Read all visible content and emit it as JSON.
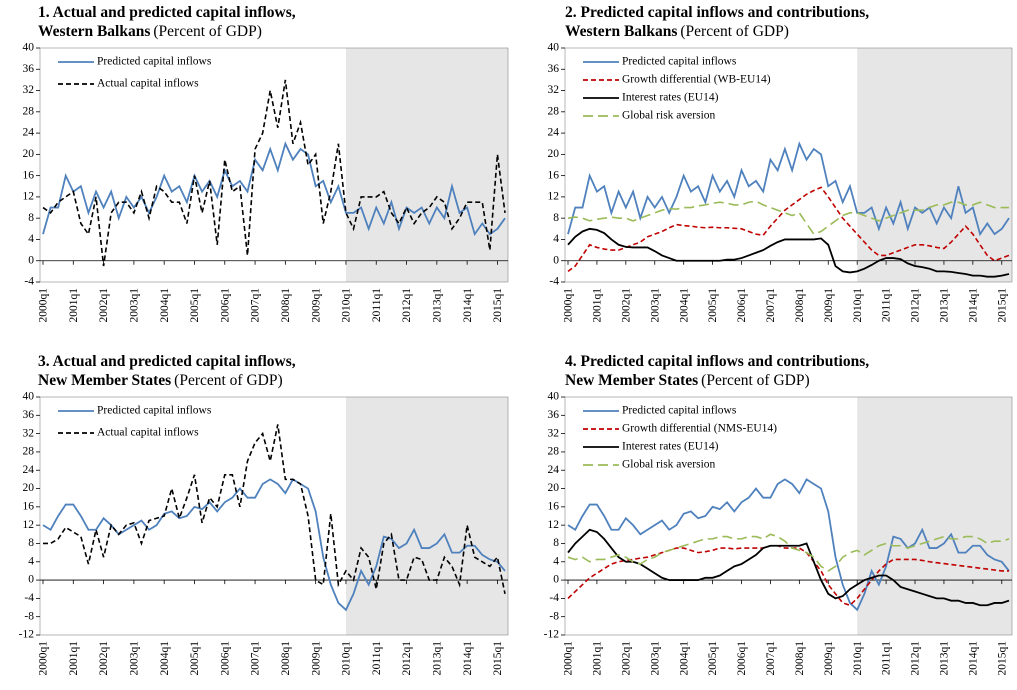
{
  "chart_data": [
    {
      "type": "line",
      "title": "1. Actual and predicted capital inflows,",
      "subtitle": "Western Balkans",
      "unit": "(Percent of GDP)",
      "categories": [
        "2000q1",
        null,
        null,
        null,
        "2001q1",
        null,
        null,
        null,
        "2002q1",
        null,
        null,
        null,
        "2003q1",
        null,
        null,
        null,
        "2004q1",
        null,
        null,
        null,
        "2005q1",
        null,
        null,
        null,
        "2006q1",
        null,
        null,
        null,
        "2007q1",
        null,
        null,
        null,
        "2008q1",
        null,
        null,
        null,
        "2009q1",
        null,
        null,
        null,
        "2010q1",
        null,
        null,
        null,
        "2011q1",
        null,
        null,
        null,
        "2012q1",
        null,
        null,
        null,
        "2013q1",
        null,
        null,
        null,
        "2014q1",
        null,
        null,
        null,
        "2015q1",
        null
      ],
      "shade_from": "2010q1",
      "legend": "upper left",
      "grid": false,
      "ylim": [
        -4,
        40
      ],
      "yticks": [
        -4,
        0,
        4,
        8,
        12,
        16,
        20,
        24,
        28,
        32,
        36,
        40
      ],
      "series": [
        {
          "name": "Predicted capital inflows",
          "color": "#4f81bd",
          "dash": "solid",
          "values": [
            5,
            10,
            10,
            16,
            13,
            14,
            9,
            13,
            10,
            13,
            8,
            12,
            10,
            12,
            9,
            12,
            16,
            13,
            14,
            11,
            16,
            13,
            15,
            12,
            17,
            14,
            15,
            13,
            19,
            17,
            21,
            17,
            22,
            19,
            21,
            20,
            14,
            15,
            11,
            14,
            9,
            9,
            10,
            6,
            10,
            7,
            11,
            6,
            10,
            9,
            10,
            7,
            10,
            8,
            14,
            9,
            10,
            5,
            7,
            5,
            6,
            8
          ]
        },
        {
          "name": "Actual capital inflows",
          "color": "#000000",
          "dash": "dashed",
          "values": [
            10,
            9,
            11,
            12,
            13,
            7,
            5,
            12,
            -1,
            9,
            11,
            11,
            9,
            13,
            8,
            14,
            13,
            11,
            11,
            7,
            16,
            9,
            15,
            3,
            19,
            13,
            14,
            1,
            21,
            24,
            32,
            25,
            34,
            22,
            26,
            18,
            20,
            7,
            13,
            22,
            9,
            6,
            12,
            12,
            12,
            13,
            9,
            7,
            10,
            7,
            9,
            10,
            12,
            11,
            6,
            8,
            11,
            11,
            11,
            2,
            20,
            9
          ]
        }
      ]
    },
    {
      "type": "line",
      "title": "2. Predicted capital inflows and contributions,",
      "subtitle": "Western Balkans",
      "unit": "(Percent of GDP)",
      "categories": [
        "2000q1",
        null,
        null,
        null,
        "2001q1",
        null,
        null,
        null,
        "2002q1",
        null,
        null,
        null,
        "2003q1",
        null,
        null,
        null,
        "2004q1",
        null,
        null,
        null,
        "2005q1",
        null,
        null,
        null,
        "2006q1",
        null,
        null,
        null,
        "2007q1",
        null,
        null,
        null,
        "2008q1",
        null,
        null,
        null,
        "2009q1",
        null,
        null,
        null,
        "2010q1",
        null,
        null,
        null,
        "2011q1",
        null,
        null,
        null,
        "2012q1",
        null,
        null,
        null,
        "2013q1",
        null,
        null,
        null,
        "2014q1",
        null,
        null,
        null,
        "2015q1",
        null
      ],
      "shade_from": "2010q1",
      "legend": "upper left",
      "grid": false,
      "ylim": [
        -4,
        40
      ],
      "yticks": [
        -4,
        0,
        4,
        8,
        12,
        16,
        20,
        24,
        28,
        32,
        36,
        40
      ],
      "series": [
        {
          "name": "Predicted capital inflows",
          "color": "#4f81bd",
          "dash": "solid",
          "values": [
            5,
            10,
            10,
            16,
            13,
            14,
            9,
            13,
            10,
            13,
            8,
            12,
            10,
            12,
            9,
            12,
            16,
            13,
            14,
            11,
            16,
            13,
            15,
            12,
            17,
            14,
            15,
            13,
            19,
            17,
            21,
            17,
            22,
            19,
            21,
            20,
            14,
            15,
            11,
            14,
            9,
            9,
            10,
            6,
            10,
            7,
            11,
            6,
            10,
            9,
            10,
            7,
            10,
            8,
            14,
            9,
            10,
            5,
            7,
            5,
            6,
            8
          ]
        },
        {
          "name": "Growth differential (WB-EU14)",
          "color": "#c00000",
          "dash": "dashed",
          "values": [
            -2,
            -1,
            1,
            3,
            2.5,
            2.2,
            2,
            2,
            2.5,
            3,
            3.5,
            4.5,
            5,
            5.5,
            6.2,
            6.8,
            6.6,
            6.5,
            6.3,
            6.2,
            6.3,
            6.2,
            6.2,
            6.1,
            6,
            5.5,
            5,
            4.8,
            6.5,
            8,
            9.5,
            10.5,
            11.5,
            12.5,
            13.2,
            13.8,
            12,
            10,
            8,
            6.5,
            5,
            3.5,
            2,
            1,
            1,
            1.5,
            2,
            2.5,
            3,
            3,
            2.8,
            2.5,
            2.3,
            3.5,
            5,
            6.5,
            5,
            3,
            1,
            0,
            0.5,
            1
          ]
        },
        {
          "name": "Interest rates (EU14)",
          "color": "#000000",
          "dash": "solid",
          "values": [
            3,
            4.5,
            5.5,
            6,
            5.8,
            5.2,
            4,
            3,
            2.6,
            2.5,
            2.5,
            2.5,
            1.8,
            1,
            0.5,
            0,
            0,
            0,
            0,
            0,
            0,
            0,
            0.2,
            0.2,
            0.5,
            1,
            1.5,
            2,
            2.8,
            3.5,
            4,
            4,
            4,
            4,
            4,
            4.2,
            3,
            -1,
            -2,
            -2.2,
            -2,
            -1.5,
            -0.8,
            0,
            0.5,
            0.5,
            0.3,
            -0.5,
            -1,
            -1.2,
            -1.5,
            -2,
            -2,
            -2.1,
            -2.3,
            -2.5,
            -2.8,
            -2.8,
            -3,
            -3,
            -2.8,
            -2.5
          ]
        },
        {
          "name": "Global risk aversion",
          "color": "#9bbb59",
          "dash": "longdash",
          "values": [
            8,
            8.2,
            8,
            7.5,
            7.8,
            8,
            8.2,
            8,
            8,
            7.5,
            8,
            8.5,
            9,
            9.5,
            9.8,
            9.7,
            10,
            10,
            10.3,
            10.5,
            10.8,
            11,
            10.8,
            10.5,
            10.5,
            11,
            11.2,
            10.5,
            10,
            9.5,
            9,
            8.5,
            9,
            7,
            5,
            5.5,
            6.5,
            7.5,
            8.5,
            9,
            9,
            8.5,
            8,
            7.5,
            8,
            8.5,
            9,
            9.5,
            9.5,
            9.5,
            10,
            10.5,
            10.5,
            11,
            11,
            10.5,
            10.5,
            11,
            10.5,
            10,
            10,
            10
          ]
        }
      ]
    },
    {
      "type": "line",
      "title": "3. Actual and predicted capital inflows,",
      "subtitle": "New Member States",
      "unit": "(Percent of GDP)",
      "categories": [
        "2000q1",
        null,
        null,
        null,
        "2001q1",
        null,
        null,
        null,
        "2002q1",
        null,
        null,
        null,
        "2003q1",
        null,
        null,
        null,
        "2004q1",
        null,
        null,
        null,
        "2005q1",
        null,
        null,
        null,
        "2006q1",
        null,
        null,
        null,
        "2007q1",
        null,
        null,
        null,
        "2008q1",
        null,
        null,
        null,
        "2009q1",
        null,
        null,
        null,
        "2010q1",
        null,
        null,
        null,
        "2011q1",
        null,
        null,
        null,
        "2012q1",
        null,
        null,
        null,
        "2013q1",
        null,
        null,
        null,
        "2014q1",
        null,
        null,
        null,
        "2015q1",
        null
      ],
      "shade_from": "2010q1",
      "legend": "upper left",
      "grid": false,
      "ylim": [
        -12,
        40
      ],
      "yticks": [
        -12,
        -8,
        -4,
        0,
        4,
        8,
        12,
        16,
        20,
        24,
        28,
        32,
        36,
        40
      ],
      "series": [
        {
          "name": "Predicted capital inflows",
          "color": "#4f81bd",
          "dash": "solid",
          "values": [
            12,
            11,
            14,
            16.5,
            16.5,
            14,
            11,
            11,
            13.5,
            12,
            10,
            11,
            12,
            13,
            11,
            12,
            14.5,
            15,
            13.5,
            14,
            16,
            15.5,
            17,
            15,
            17,
            18,
            20,
            18,
            18,
            21,
            22,
            21,
            19,
            22,
            21,
            20,
            15,
            5,
            -1,
            -5,
            -6.5,
            -3,
            2,
            -1,
            3,
            9.5,
            9,
            7,
            8,
            11,
            7,
            7,
            8,
            10,
            6,
            6,
            7.5,
            7.5,
            5.5,
            4.5,
            4,
            2
          ]
        },
        {
          "name": "Actual capital inflows",
          "color": "#000000",
          "dash": "dashed",
          "values": [
            8,
            8,
            9,
            11.5,
            10.5,
            9.5,
            3.5,
            11,
            5,
            12,
            10,
            12,
            12.5,
            8,
            13,
            13.5,
            14,
            20,
            13.5,
            18,
            23,
            12.5,
            18,
            16,
            23,
            23,
            16,
            26,
            30,
            32,
            26,
            34,
            22,
            22,
            21,
            14,
            0,
            -1,
            14.5,
            -1,
            2,
            0,
            7,
            5,
            -2,
            8,
            10,
            0,
            0,
            5,
            4.5,
            0,
            0,
            5,
            3,
            -1,
            12,
            5,
            4,
            3,
            5,
            -3
          ]
        }
      ]
    },
    {
      "type": "line",
      "title": "4. Predicted capital inflows and contributions,",
      "subtitle": "New Member States",
      "unit": "(Percent of GDP)",
      "categories": [
        "2000q1",
        null,
        null,
        null,
        "2001q1",
        null,
        null,
        null,
        "2002q1",
        null,
        null,
        null,
        "2003q1",
        null,
        null,
        null,
        "2004q1",
        null,
        null,
        null,
        "2005q1",
        null,
        null,
        null,
        "2006q1",
        null,
        null,
        null,
        "2007q1",
        null,
        null,
        null,
        "2008q1",
        null,
        null,
        null,
        "2009q1",
        null,
        null,
        null,
        "2010q1",
        null,
        null,
        null,
        "2011q1",
        null,
        null,
        null,
        "2012q1",
        null,
        null,
        null,
        "2013q1",
        null,
        null,
        null,
        "2014q1",
        null,
        null,
        null,
        "2015q1",
        null
      ],
      "shade_from": "2010q1",
      "legend": "upper left",
      "grid": false,
      "ylim": [
        -12,
        40
      ],
      "yticks": [
        -12,
        -8,
        -4,
        0,
        4,
        8,
        12,
        16,
        20,
        24,
        28,
        32,
        36,
        40
      ],
      "series": [
        {
          "name": "Predicted capital inflows",
          "color": "#4f81bd",
          "dash": "solid",
          "values": [
            12,
            11,
            14,
            16.5,
            16.5,
            14,
            11,
            11,
            13.5,
            12,
            10,
            11,
            12,
            13,
            11,
            12,
            14.5,
            15,
            13.5,
            14,
            16,
            15.5,
            17,
            15,
            17,
            18,
            20,
            18,
            18,
            21,
            22,
            21,
            19,
            22,
            21,
            20,
            15,
            5,
            -1,
            -5,
            -6.5,
            -3,
            2,
            -1,
            3,
            9.5,
            9,
            7,
            8,
            11,
            7,
            7,
            8,
            10,
            6,
            6,
            7.5,
            7.5,
            5.5,
            4.5,
            4,
            2
          ]
        },
        {
          "name": "Growth differential (NMS-EU14)",
          "color": "#c00000",
          "dash": "dashed",
          "values": [
            -4,
            -2.5,
            -1,
            0.5,
            1.5,
            2.5,
            3.5,
            4,
            4.3,
            4.5,
            4.8,
            5,
            5.5,
            6,
            6.5,
            7,
            7,
            6.5,
            6,
            6.2,
            6.5,
            7,
            7,
            6.8,
            7,
            7,
            7,
            7,
            7.5,
            7.5,
            7,
            7,
            7,
            6,
            4,
            2,
            -1,
            -3,
            -5,
            -5.5,
            -4,
            -2,
            0,
            2,
            3.5,
            4.5,
            4.5,
            4.5,
            4.5,
            4.3,
            4,
            3.8,
            3.6,
            3.4,
            3.2,
            3,
            2.8,
            2.6,
            2.4,
            2.2,
            2,
            2
          ]
        },
        {
          "name": "Interest rates (EU14)",
          "color": "#000000",
          "dash": "solid",
          "values": [
            6,
            8,
            9.5,
            11,
            10.5,
            9,
            7,
            5,
            4,
            4,
            3.5,
            2.5,
            1.5,
            0.5,
            0,
            0,
            0,
            0,
            0,
            0.5,
            0.5,
            1,
            2,
            3,
            3.5,
            4.5,
            5.5,
            7,
            7.5,
            7.5,
            7.5,
            7.5,
            7.5,
            8,
            4,
            0,
            -3,
            -4,
            -3.5,
            -2,
            -1,
            0,
            0.5,
            1,
            1,
            0,
            -1.5,
            -2,
            -2.5,
            -3,
            -3.5,
            -4,
            -4,
            -4.5,
            -4.5,
            -5,
            -5,
            -5.5,
            -5.5,
            -5,
            -5,
            -4.5
          ]
        },
        {
          "name": "Global risk aversion",
          "color": "#9bbb59",
          "dash": "longdash",
          "values": [
            5,
            4.5,
            5,
            4,
            4.5,
            4.5,
            5,
            5.5,
            5,
            4,
            3.5,
            4.5,
            5,
            6,
            6.5,
            7,
            7.5,
            8,
            8.5,
            9,
            9,
            9.5,
            9.5,
            9,
            9,
            9.5,
            9.5,
            9,
            10,
            9.5,
            8.5,
            7,
            6.5,
            6,
            5,
            3,
            2,
            3,
            5,
            6,
            6.5,
            5.5,
            6.5,
            7.5,
            8,
            7.5,
            7.5,
            7,
            7.5,
            8,
            8.5,
            9,
            9.5,
            9,
            9,
            9.5,
            9.5,
            9,
            8,
            8.5,
            8.5,
            9
          ]
        }
      ]
    }
  ]
}
